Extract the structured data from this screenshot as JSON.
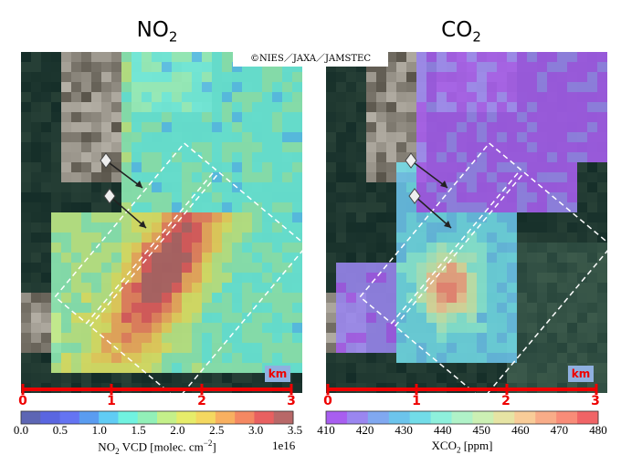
{
  "panels": [
    {
      "title_main": "NO",
      "title_sub": "2",
      "scale_labels": [
        "0",
        "1",
        "2",
        "3"
      ],
      "scale_unit": "km",
      "colorbar": {
        "ticks": [
          "0.0",
          "0.5",
          "1.0",
          "1.5",
          "2.0",
          "2.5",
          "3.0",
          "3.5"
        ],
        "label_main": "NO",
        "label_sub": "2",
        "label_rest": " VCD [molec. cm",
        "label_sup": "−2",
        "label_end": "]",
        "exponent": "1e16",
        "colors": [
          "#5d66b4",
          "#5a66e0",
          "#6474f2",
          "#5a9cf0",
          "#60ccf4",
          "#70f2e0",
          "#92f0b8",
          "#c4f08a",
          "#e6ec6a",
          "#f4d860",
          "#f8b060",
          "#f48862",
          "#e86060",
          "#b86868"
        ]
      }
    },
    {
      "title_main": "CO",
      "title_sub": "2",
      "scale_labels": [
        "0",
        "1",
        "2",
        "3"
      ],
      "scale_unit": "km",
      "colorbar": {
        "ticks": [
          "410",
          "420",
          "430",
          "440",
          "450",
          "460",
          "470",
          "480"
        ],
        "label_main": "XCO",
        "label_sub": "2",
        "label_rest": " [ppm]",
        "colors": [
          "#a85ef0",
          "#9a86f0",
          "#80a8f0",
          "#6cc4ec",
          "#72dce8",
          "#8ef0dc",
          "#b0f2c8",
          "#ccf0b4",
          "#e6e4a4",
          "#f8cc98",
          "#f8ac88",
          "#f88c78",
          "#f06466"
        ]
      }
    }
  ],
  "copyright": "©NIES／JAXA／JAMSTEC"
}
